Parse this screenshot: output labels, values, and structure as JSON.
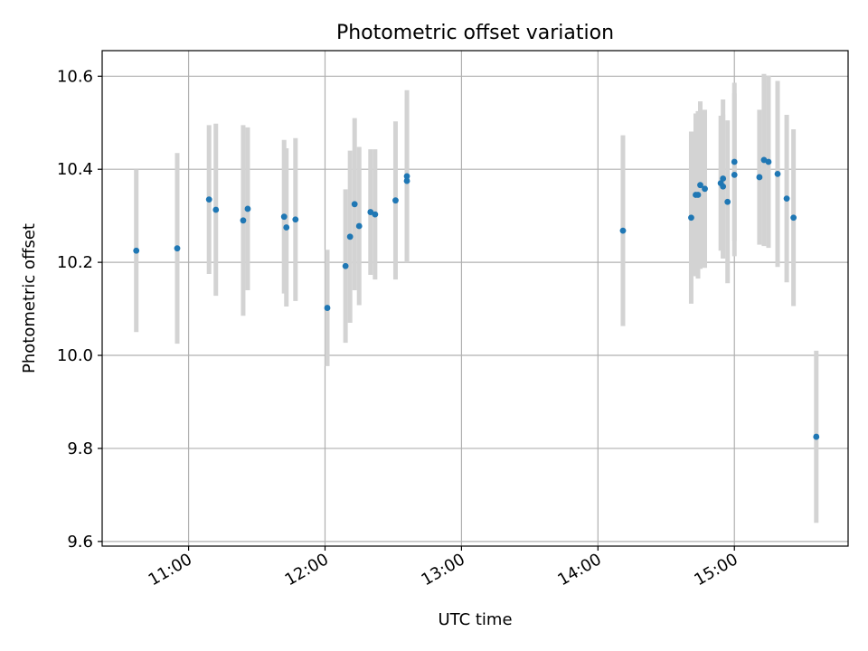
{
  "chart_data": {
    "type": "scatter",
    "title": "Photometric offset variation",
    "xlabel": "UTC time",
    "ylabel": "Photometric offset",
    "x_type": "time",
    "xlim": [
      "10:22",
      "15:50"
    ],
    "ylim": [
      9.59,
      10.655
    ],
    "x_ticks": [
      "11:00",
      "12:00",
      "13:00",
      "14:00",
      "15:00"
    ],
    "y_ticks": [
      9.6,
      9.8,
      10.0,
      10.2,
      10.4,
      10.6
    ],
    "y_tick_labels": [
      "9.6",
      "9.8",
      "10.0",
      "10.2",
      "10.4",
      "10.6"
    ],
    "grid": true,
    "colors": {
      "point": "#1f77b4",
      "errorbar": "#d3d3d3",
      "grid": "#b0b0b0"
    },
    "points": [
      {
        "x": "10:37",
        "y": 10.225,
        "err": 0.175
      },
      {
        "x": "10:55",
        "y": 10.23,
        "err": 0.205
      },
      {
        "x": "11:09",
        "y": 10.335,
        "err": 0.16
      },
      {
        "x": "11:12",
        "y": 10.313,
        "err": 0.185
      },
      {
        "x": "11:24",
        "y": 10.29,
        "err": 0.205
      },
      {
        "x": "11:26",
        "y": 10.315,
        "err": 0.175
      },
      {
        "x": "11:42",
        "y": 10.298,
        "err": 0.165
      },
      {
        "x": "11:43",
        "y": 10.275,
        "err": 0.17
      },
      {
        "x": "11:47",
        "y": 10.292,
        "err": 0.175
      },
      {
        "x": "12:01",
        "y": 10.102,
        "err": 0.125
      },
      {
        "x": "12:09",
        "y": 10.192,
        "err": 0.165
      },
      {
        "x": "12:11",
        "y": 10.255,
        "err": 0.185
      },
      {
        "x": "12:13",
        "y": 10.325,
        "err": 0.185
      },
      {
        "x": "12:15",
        "y": 10.278,
        "err": 0.17
      },
      {
        "x": "12:20",
        "y": 10.308,
        "err": 0.135
      },
      {
        "x": "12:22",
        "y": 10.303,
        "err": 0.14
      },
      {
        "x": "12:31",
        "y": 10.333,
        "err": 0.17
      },
      {
        "x": "12:36",
        "y": 10.375,
        "err": 0.175
      },
      {
        "x": "12:36",
        "y": 10.385,
        "err": 0.185
      },
      {
        "x": "14:11",
        "y": 10.268,
        "err": 0.205
      },
      {
        "x": "14:41",
        "y": 10.296,
        "err": 0.185
      },
      {
        "x": "14:43",
        "y": 10.345,
        "err": 0.175
      },
      {
        "x": "14:44",
        "y": 10.345,
        "err": 0.18
      },
      {
        "x": "14:45",
        "y": 10.366,
        "err": 0.18
      },
      {
        "x": "14:47",
        "y": 10.358,
        "err": 0.17
      },
      {
        "x": "14:54",
        "y": 10.37,
        "err": 0.145
      },
      {
        "x": "14:55",
        "y": 10.363,
        "err": 0.155
      },
      {
        "x": "14:55",
        "y": 10.38,
        "err": 0.17
      },
      {
        "x": "14:57",
        "y": 10.33,
        "err": 0.175
      },
      {
        "x": "15:00",
        "y": 10.388,
        "err": 0.175
      },
      {
        "x": "15:00",
        "y": 10.416,
        "err": 0.17
      },
      {
        "x": "15:11",
        "y": 10.383,
        "err": 0.145
      },
      {
        "x": "15:13",
        "y": 10.42,
        "err": 0.185
      },
      {
        "x": "15:15",
        "y": 10.416,
        "err": 0.185
      },
      {
        "x": "15:19",
        "y": 10.39,
        "err": 0.2
      },
      {
        "x": "15:23",
        "y": 10.337,
        "err": 0.18
      },
      {
        "x": "15:26",
        "y": 10.296,
        "err": 0.19
      },
      {
        "x": "15:36",
        "y": 9.825,
        "err": 0.185
      }
    ]
  }
}
